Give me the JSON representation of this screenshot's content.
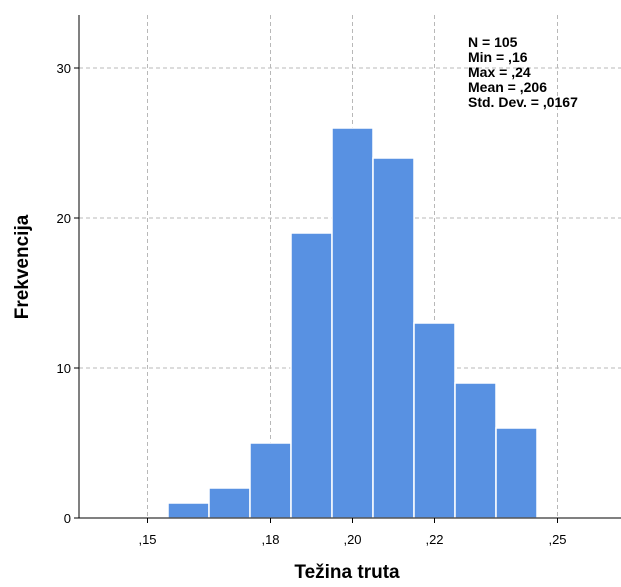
{
  "chart_data": {
    "type": "histogram",
    "xlabel": "Težina truta",
    "ylabel": "Frekvencija",
    "bar_color": "#5891e2",
    "bin_width": 0.01,
    "bins": [
      {
        "start": 0.155,
        "count": 1
      },
      {
        "start": 0.165,
        "count": 2
      },
      {
        "start": 0.175,
        "count": 5
      },
      {
        "start": 0.185,
        "count": 19
      },
      {
        "start": 0.195,
        "count": 26
      },
      {
        "start": 0.205,
        "count": 24
      },
      {
        "start": 0.215,
        "count": 13
      },
      {
        "start": 0.225,
        "count": 9
      },
      {
        "start": 0.235,
        "count": 6
      }
    ],
    "ylim": [
      0,
      33
    ],
    "y_ticks": [
      {
        "value": 0,
        "label": "0"
      },
      {
        "value": 10,
        "label": "10"
      },
      {
        "value": 20,
        "label": "20"
      },
      {
        "value": 30,
        "label": "30"
      }
    ],
    "x_ticks": [
      {
        "value": 0.15,
        "label": ",15"
      },
      {
        "value": 0.18,
        "label": ",18"
      },
      {
        "value": 0.2,
        "label": ",20"
      },
      {
        "value": 0.22,
        "label": ",22"
      },
      {
        "value": 0.25,
        "label": ",25"
      }
    ],
    "grid": true,
    "stats": [
      "N = 105",
      "Min = ,16",
      "Max = ,24",
      "Mean = ,206",
      "Std. Dev. = ,0167"
    ]
  }
}
